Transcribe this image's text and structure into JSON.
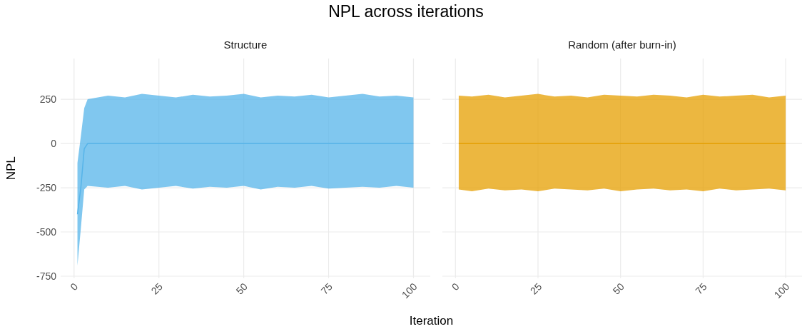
{
  "chart_data": [
    {
      "type": "line",
      "title": "NPL across iterations",
      "subtitle": "Structure",
      "xlabel": "Iteration",
      "ylabel": "NPL",
      "xlim": [
        -3.95,
        104.95
      ],
      "ylim": [
        -760,
        480
      ],
      "xticks": [
        0,
        25,
        50,
        75,
        100
      ],
      "yticks": [
        -750,
        -500,
        -250,
        0,
        250
      ],
      "grid": true,
      "series": [
        {
          "color": "#56b4e9",
          "x": [
            1,
            2,
            3,
            4,
            10,
            15,
            20,
            25,
            30,
            35,
            40,
            45,
            50,
            55,
            60,
            65,
            70,
            75,
            80,
            85,
            90,
            95,
            100
          ],
          "values": [
            -400,
            -250,
            -30,
            0,
            0,
            0,
            0,
            0,
            0,
            0,
            0,
            0,
            0,
            0,
            0,
            0,
            0,
            0,
            0,
            0,
            0,
            0,
            0
          ],
          "lower": [
            -690,
            -480,
            -260,
            -240,
            -250,
            -240,
            -260,
            -250,
            -240,
            -255,
            -245,
            -250,
            -240,
            -260,
            -245,
            -250,
            -240,
            -255,
            -250,
            -245,
            -250,
            -240,
            -250
          ],
          "upper": [
            -110,
            40,
            200,
            250,
            270,
            260,
            280,
            270,
            260,
            275,
            265,
            270,
            280,
            260,
            270,
            265,
            275,
            260,
            270,
            280,
            265,
            270,
            260
          ]
        }
      ]
    },
    {
      "type": "line",
      "subtitle": "Random (after burn-in)",
      "xlim": [
        -3.95,
        104.95
      ],
      "ylim": [
        -760,
        480
      ],
      "xticks": [
        0,
        25,
        50,
        75,
        100
      ],
      "yticks": [
        -750,
        -500,
        -250,
        0,
        250
      ],
      "grid": true,
      "tick_labels": "x",
      "series": [
        {
          "color": "#e69f00",
          "x": [
            1,
            5,
            10,
            15,
            20,
            25,
            30,
            35,
            40,
            45,
            50,
            55,
            60,
            65,
            70,
            75,
            80,
            85,
            90,
            95,
            100
          ],
          "values": [
            0,
            0,
            0,
            0,
            0,
            0,
            0,
            0,
            0,
            0,
            0,
            0,
            0,
            0,
            0,
            0,
            0,
            0,
            0,
            0,
            0
          ],
          "lower": [
            -260,
            -270,
            -255,
            -265,
            -260,
            -270,
            -255,
            -260,
            -265,
            -255,
            -270,
            -260,
            -255,
            -265,
            -260,
            -270,
            -255,
            -265,
            -260,
            -255,
            -265
          ],
          "upper": [
            270,
            265,
            275,
            260,
            270,
            280,
            265,
            270,
            260,
            275,
            270,
            265,
            275,
            270,
            260,
            275,
            265,
            270,
            275,
            260,
            270
          ]
        }
      ]
    }
  ]
}
